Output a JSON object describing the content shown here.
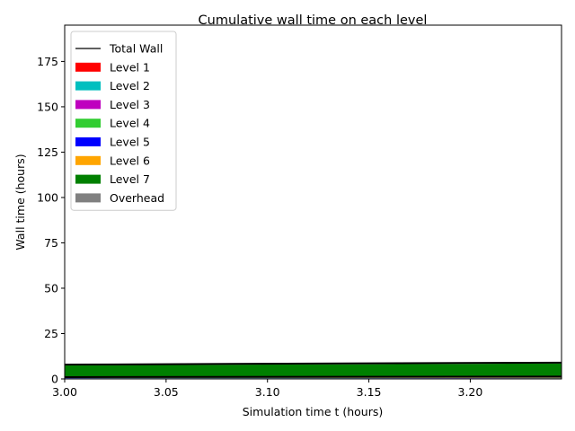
{
  "chart_data": {
    "type": "area",
    "title": "Cumulative wall time on each level",
    "xlabel": "Simulation time t (hours)",
    "ylabel": "Wall time (hours)",
    "xlim": [
      3.0,
      3.245
    ],
    "ylim": [
      0,
      195
    ],
    "xticks": [
      3.0,
      3.05,
      3.1,
      3.15,
      3.2
    ],
    "xtick_labels": [
      "3.00",
      "3.05",
      "3.10",
      "3.15",
      "3.20"
    ],
    "yticks": [
      0,
      25,
      50,
      75,
      100,
      125,
      150,
      175
    ],
    "ytick_labels": [
      "0",
      "25",
      "50",
      "75",
      "100",
      "125",
      "150",
      "175"
    ],
    "grid": false,
    "legend_position": "top-left",
    "x": [
      3.0,
      3.245
    ],
    "series": [
      {
        "name": "Level 1",
        "color": "#ff0000",
        "values": [
          0.1,
          0.12
        ]
      },
      {
        "name": "Level 2",
        "color": "#00bfbf",
        "values": [
          0.1,
          0.12
        ]
      },
      {
        "name": "Level 3",
        "color": "#bf00bf",
        "values": [
          0.1,
          0.12
        ]
      },
      {
        "name": "Level 4",
        "color": "#32cd32",
        "values": [
          0.1,
          0.12
        ]
      },
      {
        "name": "Level 5",
        "color": "#0000ff",
        "values": [
          0.1,
          0.12
        ]
      },
      {
        "name": "Level 6",
        "color": "#ffa500",
        "values": [
          0.1,
          0.12
        ]
      },
      {
        "name": "Level 7",
        "color": "#008000",
        "values": [
          6.9,
          7.8
        ]
      },
      {
        "name": "Overhead",
        "color": "#808080",
        "values": [
          0.4,
          0.5
        ]
      }
    ],
    "total": {
      "name": "Total Wall",
      "color": "#000000",
      "values": [
        7.9,
        9.0
      ]
    },
    "inner_line": {
      "color": "#000000",
      "values": [
        1.0,
        1.3
      ]
    }
  }
}
